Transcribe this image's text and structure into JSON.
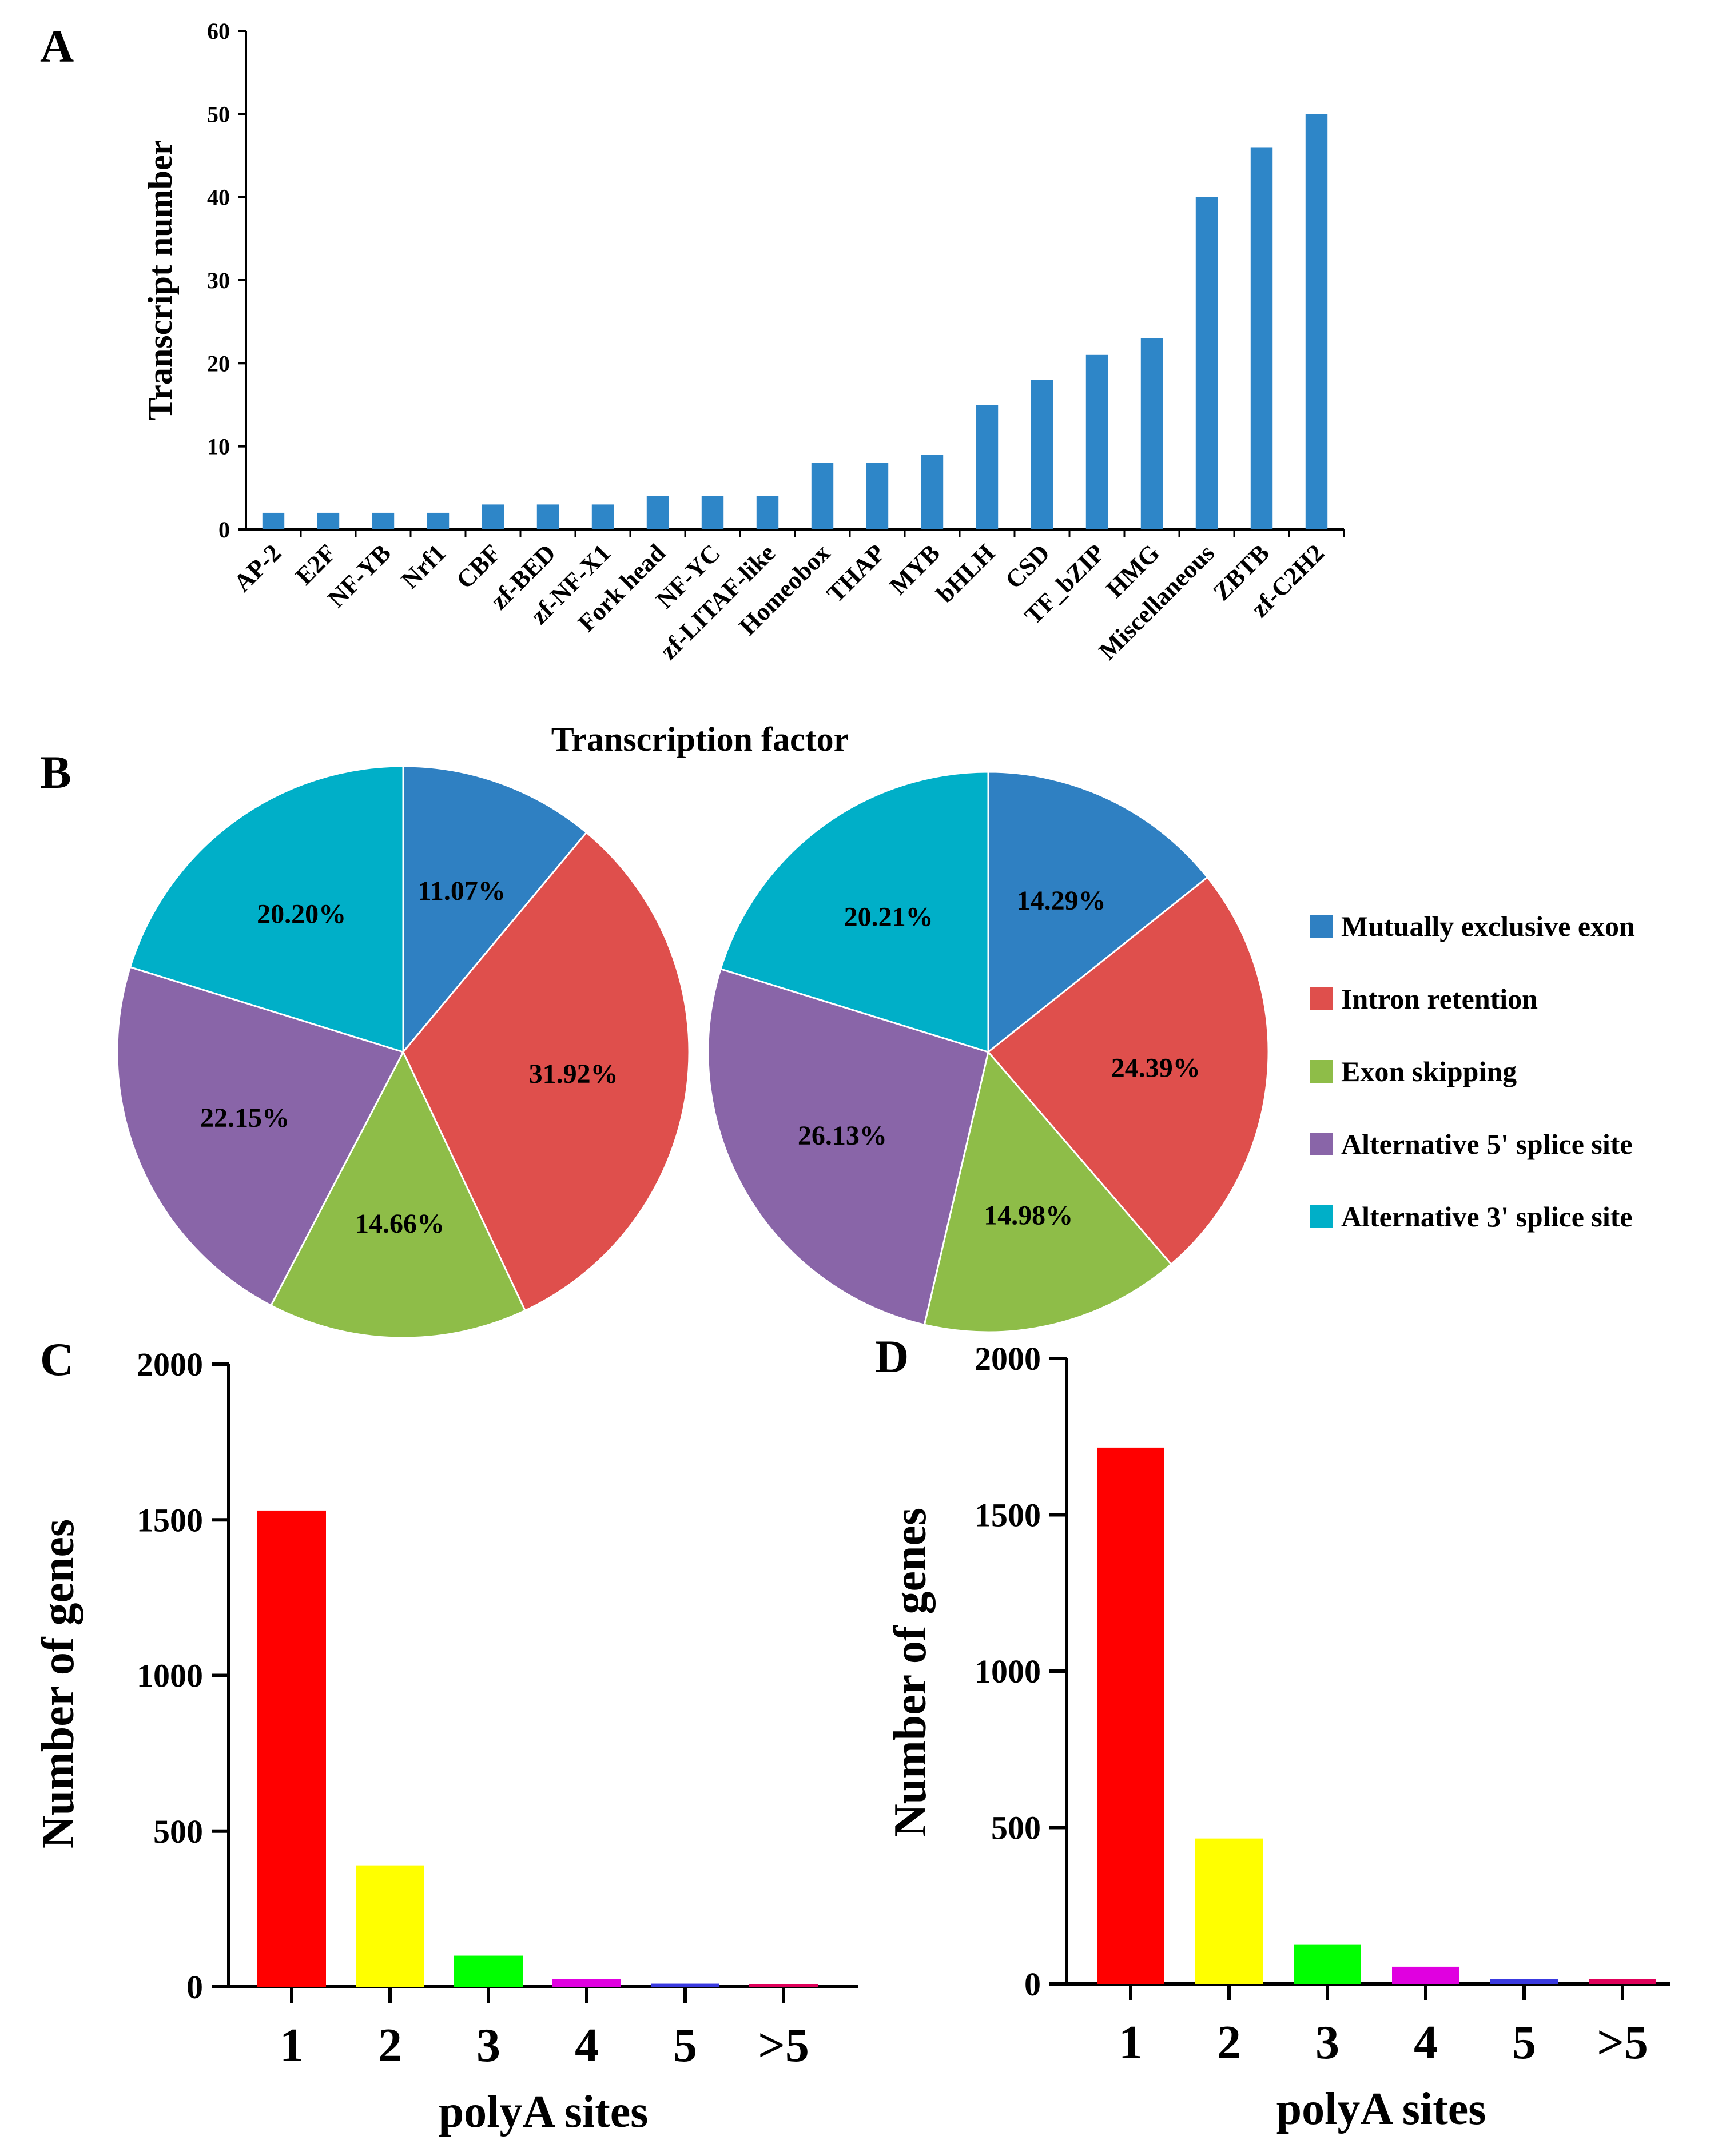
{
  "panel_labels": {
    "a": "A",
    "b": "B",
    "c": "C",
    "d": "D"
  },
  "colors": {
    "bar_blue": "#2E86C8",
    "pie": [
      "#2F80C2",
      "#DF4F4C",
      "#8EBD48",
      "#8965A8",
      "#00AFC8"
    ],
    "poly": [
      "#FF0000",
      "#FFFF00",
      "#00FF00",
      "#E000E0",
      "#3A3AE0",
      "#E0005A"
    ]
  },
  "chart_data": [
    {
      "id": "A",
      "type": "bar",
      "title": "",
      "xlabel": "Transcription factor",
      "ylabel": "Transcript number",
      "ylim": [
        0,
        60
      ],
      "yticks": [
        "0",
        "10",
        "20",
        "30",
        "40",
        "50",
        "60"
      ],
      "categories": [
        "AP-2",
        "E2F",
        "NF-YB",
        "Nrf1",
        "CBF",
        "zf-BED",
        "zf-NF-X1",
        "Fork head",
        "NF-YC",
        "zf-LITAF-like",
        "Homeobox",
        "THAP",
        "MYB",
        "bHLH",
        "CSD",
        "TF_bZIP",
        "HMG",
        "Miscellaneous",
        "ZBTB",
        "zf-C2H2"
      ],
      "values": [
        2,
        2,
        2,
        2,
        3,
        3,
        3,
        4,
        4,
        4,
        8,
        8,
        9,
        15,
        18,
        21,
        23,
        40,
        46,
        50
      ]
    },
    {
      "id": "B",
      "type": "pie",
      "legend": [
        "Mutually exclusive exon",
        "Intron retention",
        "Exon skipping",
        "Alternative 5' splice site",
        "Alternative 3' splice site"
      ],
      "pies": [
        {
          "values": [
            11.07,
            31.92,
            14.66,
            22.15,
            20.2
          ],
          "labels": [
            "11.07%",
            "31.92%",
            "14.66%",
            "22.15%",
            "20.20%"
          ]
        },
        {
          "values": [
            14.29,
            24.39,
            14.98,
            26.13,
            20.21
          ],
          "labels": [
            "14.29%",
            "24.39%",
            "14.98%",
            "26.13%",
            "20.21%"
          ]
        }
      ]
    },
    {
      "id": "C",
      "type": "bar",
      "xlabel": "polyA sites",
      "ylabel": "Number of genes",
      "ylim": [
        0,
        2000
      ],
      "yticks": [
        "0",
        "500",
        "1000",
        "1500",
        "2000"
      ],
      "categories": [
        "1",
        "2",
        "3",
        "4",
        "5",
        ">5"
      ],
      "values": [
        1530,
        390,
        100,
        25,
        10,
        8
      ]
    },
    {
      "id": "D",
      "type": "bar",
      "xlabel": "polyA sites",
      "ylabel": "Number of genes",
      "ylim": [
        0,
        2000
      ],
      "yticks": [
        "0",
        "500",
        "1000",
        "1500",
        "2000"
      ],
      "categories": [
        "1",
        "2",
        "3",
        "4",
        "5",
        ">5"
      ],
      "values": [
        1715,
        465,
        125,
        55,
        15,
        15
      ]
    }
  ]
}
